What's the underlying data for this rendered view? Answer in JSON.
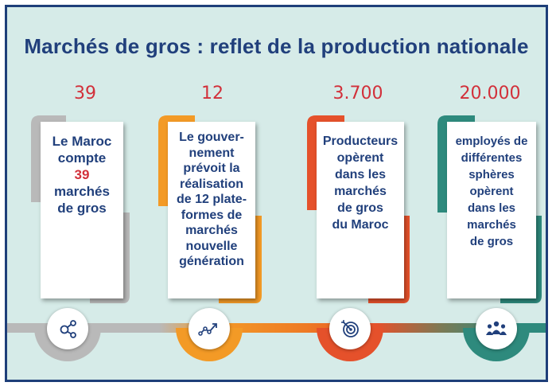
{
  "title": "Marchés de gros : reflet de la production nationale",
  "stats": [
    {
      "number": "39",
      "lines": [
        "Le Maroc",
        "compte",
        "39",
        "marchés",
        "de gros"
      ],
      "color": "#b9b9b9",
      "icon": "network-icon"
    },
    {
      "number": "12",
      "lines": [
        "Le gouver-",
        "nement",
        "prévoit la",
        "réalisation",
        "de 12 plate-",
        "formes de",
        "marchés",
        "nouvelle",
        "génération"
      ],
      "color": "#f39a26",
      "icon": "trend-line-icon"
    },
    {
      "number": "3.700",
      "lines": [
        "Producteurs",
        "opèrent",
        "dans les",
        "marchés",
        "de gros",
        "du Maroc"
      ],
      "color": "#e5512b",
      "icon": "target-icon"
    },
    {
      "number": "20.000",
      "lines": [
        "employés de",
        "différentes",
        "sphères",
        "opèrent",
        "dans les",
        "marchés",
        "de gros"
      ],
      "color": "#2e8a7d",
      "icon": "people-group-icon"
    }
  ],
  "colors": {
    "background": "#d6ebe8",
    "frame": "#1e3f79",
    "title": "#21407c",
    "number": "#d2303a"
  }
}
